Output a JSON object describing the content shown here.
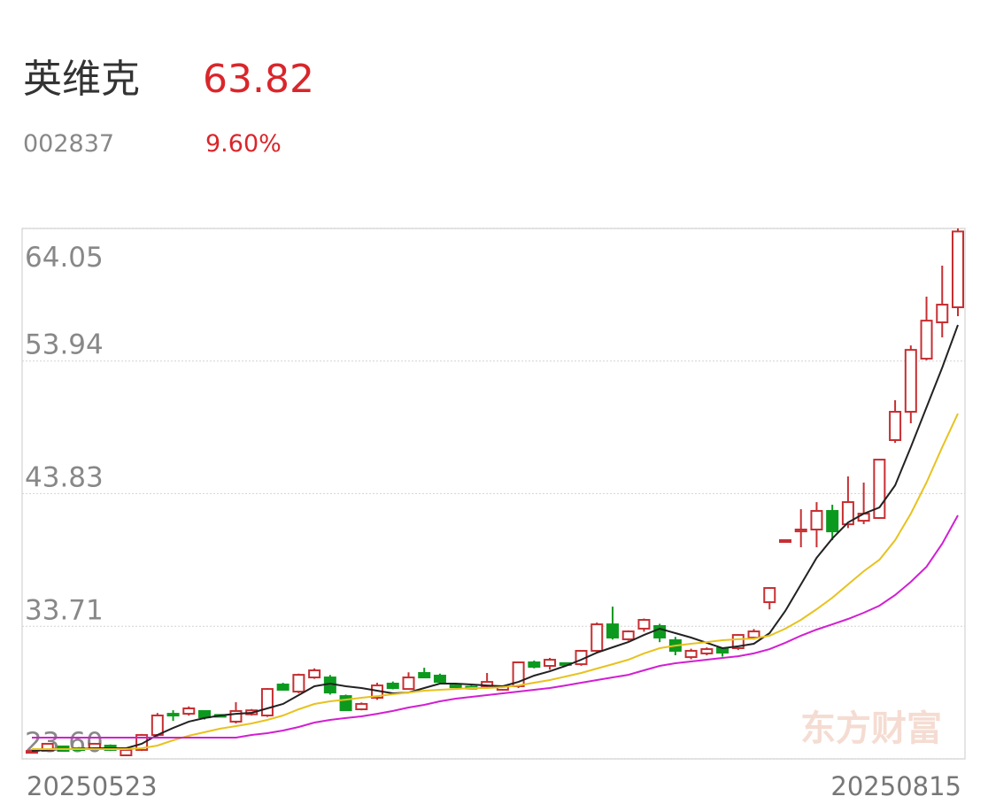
{
  "header": {
    "name": "英维克",
    "price": "63.82",
    "code": "002837",
    "change": "9.60%"
  },
  "watermark": "东方财富",
  "chart_data": {
    "type": "candlestick",
    "categories": [
      "20250523",
      null,
      null,
      null,
      null,
      null,
      null,
      null,
      null,
      null,
      null,
      null,
      null,
      null,
      null,
      null,
      null,
      null,
      null,
      null,
      null,
      null,
      null,
      null,
      null,
      null,
      null,
      null,
      null,
      null,
      null,
      null,
      null,
      null,
      null,
      null,
      null,
      null,
      null,
      null,
      null,
      null,
      null,
      null,
      null,
      null,
      null,
      null,
      null,
      null,
      null,
      null,
      null,
      null,
      null,
      null,
      null,
      null,
      null,
      "20250815"
    ],
    "open": [
      24.2,
      24.21,
      24.55,
      24.41,
      24.41,
      24.61,
      23.87,
      24.28,
      25.42,
      27.04,
      27.04,
      27.25,
      26.95,
      26.44,
      27.0,
      26.91,
      29.27,
      28.73,
      29.81,
      29.81,
      28.39,
      27.38,
      28.26,
      29.34,
      28.93,
      30.15,
      29.95,
      29.2,
      29.1,
      29.14,
      28.87,
      29.14,
      30.96,
      30.69,
      30.9,
      30.82,
      31.84,
      33.86,
      32.72,
      33.53,
      33.73,
      32.65,
      31.36,
      31.64,
      32.04,
      32.04,
      32.85,
      35.55,
      40.2,
      40.95,
      41.09,
      42.51,
      41.49,
      41.76,
      41.97,
      47.91,
      50.07,
      54.12,
      56.89,
      58.04
    ],
    "high": [
      24.3,
      24.8,
      24.6,
      24.5,
      24.8,
      24.7,
      24.3,
      25.5,
      27.1,
      27.31,
      27.6,
      27.3,
      27.0,
      27.92,
      27.4,
      29.0,
      29.4,
      30.1,
      30.5,
      30.0,
      28.5,
      27.9,
      29.4,
      29.5,
      30.2,
      30.55,
      30.1,
      29.3,
      29.2,
      30.15,
      29.2,
      31.0,
      31.1,
      31.3,
      30.95,
      31.9,
      34.0,
      35.21,
      33.4,
      34.3,
      33.9,
      32.9,
      32.0,
      32.1,
      32.1,
      33.1,
      33.5,
      36.7,
      40.3,
      42.64,
      43.18,
      42.98,
      45.14,
      44.67,
      46.42,
      50.95,
      55.13,
      58.85,
      61.21,
      64.05
    ],
    "low": [
      24.1,
      24.15,
      24.2,
      24.3,
      24.35,
      24.2,
      23.8,
      24.2,
      25.3,
      26.5,
      26.9,
      26.6,
      26.8,
      26.3,
      26.9,
      26.8,
      28.8,
      28.6,
      29.7,
      28.5,
      27.25,
      27.3,
      28.1,
      28.9,
      28.9,
      29.8,
      29.4,
      29.0,
      28.95,
      29.0,
      28.8,
      29.0,
      30.5,
      30.4,
      30.7,
      30.7,
      31.7,
      32.7,
      32.6,
      33.3,
      32.5,
      31.5,
      31.2,
      31.5,
      31.4,
      31.9,
      32.7,
      35.0,
      40.1,
      39.74,
      39.74,
      40.28,
      41.2,
      41.5,
      41.9,
      47.7,
      49.19,
      54.0,
      55.74,
      57.36
    ],
    "close": [
      24.2,
      24.75,
      24.21,
      24.35,
      24.75,
      24.28,
      24.28,
      25.42,
      26.91,
      26.95,
      27.45,
      26.77,
      26.85,
      27.25,
      27.3,
      28.93,
      28.87,
      30.01,
      30.35,
      28.66,
      27.31,
      27.79,
      29.2,
      29.0,
      29.81,
      29.81,
      29.47,
      29.14,
      29.0,
      29.47,
      29.14,
      30.96,
      30.62,
      31.16,
      30.8,
      31.84,
      33.86,
      32.85,
      33.32,
      34.2,
      32.85,
      31.84,
      31.84,
      31.97,
      31.7,
      33.05,
      33.32,
      36.63,
      40.28,
      41.09,
      42.51,
      40.95,
      43.18,
      42.3,
      46.42,
      50.07,
      54.79,
      57.02,
      58.24,
      63.82
    ],
    "up_color": "#c62f32",
    "down_color": "#0c9a1e",
    "series": [
      {
        "color": "#222222",
        "values": [
          24.21,
          24.28,
          24.34,
          24.34,
          24.41,
          24.41,
          24.41,
          24.75,
          25.42,
          25.96,
          26.44,
          26.71,
          26.91,
          27.04,
          27.11,
          27.45,
          27.79,
          28.46,
          29.14,
          29.34,
          29.14,
          29.0,
          28.8,
          28.6,
          28.66,
          29.0,
          29.34,
          29.34,
          29.27,
          29.2,
          29.14,
          29.47,
          29.95,
          30.28,
          30.69,
          31.16,
          31.7,
          32.11,
          32.51,
          33.05,
          33.53,
          33.19,
          32.85,
          32.45,
          32.04,
          32.18,
          32.38,
          33.19,
          34.88,
          36.9,
          38.93,
          40.41,
          41.63,
          42.3,
          42.78,
          44.46,
          47.37,
          50.4,
          53.44,
          56.69
        ]
      },
      {
        "color": "#e8c21e",
        "values": [
          24.34,
          24.34,
          24.34,
          24.34,
          24.34,
          24.34,
          24.34,
          24.41,
          24.61,
          25.02,
          25.36,
          25.63,
          25.9,
          26.1,
          26.3,
          26.57,
          26.91,
          27.38,
          27.79,
          27.99,
          28.12,
          28.26,
          28.39,
          28.53,
          28.66,
          28.8,
          28.87,
          28.93,
          29.0,
          29.0,
          29.07,
          29.2,
          29.41,
          29.61,
          29.88,
          30.15,
          30.49,
          30.82,
          31.16,
          31.64,
          32.04,
          32.24,
          32.38,
          32.51,
          32.65,
          32.72,
          32.78,
          32.99,
          33.53,
          34.2,
          35.01,
          35.89,
          36.9,
          37.91,
          38.79,
          40.28,
          42.3,
          44.67,
          47.37,
          49.93
        ]
      },
      {
        "color": "#d21fd2",
        "values": [
          25.22,
          25.22,
          25.22,
          25.22,
          25.22,
          25.22,
          25.22,
          25.22,
          25.22,
          25.22,
          25.22,
          25.22,
          25.22,
          25.22,
          25.42,
          25.56,
          25.76,
          26.03,
          26.37,
          26.57,
          26.71,
          26.84,
          27.04,
          27.25,
          27.52,
          27.72,
          27.99,
          28.19,
          28.33,
          28.46,
          28.6,
          28.73,
          28.87,
          29.0,
          29.2,
          29.41,
          29.61,
          29.81,
          30.01,
          30.35,
          30.69,
          30.89,
          31.03,
          31.16,
          31.3,
          31.43,
          31.64,
          31.97,
          32.45,
          32.99,
          33.46,
          33.86,
          34.27,
          34.74,
          35.28,
          36.09,
          37.1,
          38.25,
          40.01,
          42.17
        ]
      }
    ],
    "ylim": [
      23.6,
      64.05
    ],
    "yticks": [
      {
        "value": 23.6,
        "label": "23.60"
      },
      33.71,
      43.83,
      53.94,
      64.05
    ],
    "grid": true
  }
}
